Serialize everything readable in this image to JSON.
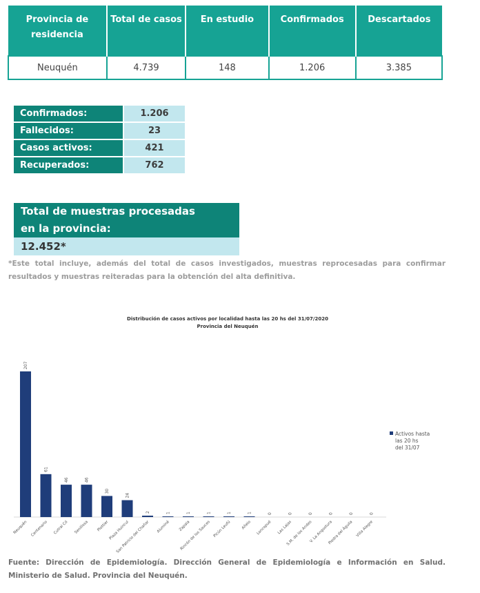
{
  "summary_table": {
    "headers": [
      "Provincia de residencia",
      "Total de casos",
      "En estudio",
      "Confirmados",
      "Descartados"
    ],
    "row": [
      "Neuquén",
      "4.739",
      "148",
      "1.206",
      "3.385"
    ]
  },
  "stats": [
    {
      "label": "Confirmados:",
      "value": "1.206"
    },
    {
      "label": "Fallecidos:",
      "value": "23"
    },
    {
      "label": "Casos activos:",
      "value": "421"
    },
    {
      "label": "Recuperados:",
      "value": "762"
    }
  ],
  "samples": {
    "title_line1": "Total de muestras procesadas",
    "title_line2": "en la provincia:",
    "value": "12.452*",
    "note": "*Este total incluye, además del total de casos investigados, muestras reprocesadas para confirmar resultados y muestras reiteradas para la obtención del alta definitiva."
  },
  "chart_data": {
    "type": "bar",
    "title": "Distribución de casos activos por localidad hasta las 20 hs del 31/07/2020",
    "subtitle": "Provincia del Neuquén",
    "categories": [
      "Neuquén",
      "Centenario",
      "Cutral Có",
      "Senillosa",
      "Plottier",
      "Plaza Huincul",
      "San Patricio del Chañar",
      "Aluminé",
      "Zapala",
      "Rincón de los Sauces",
      "Picún Leufú",
      "Añelo",
      "Loncopué",
      "Las Lajas",
      "S.M. de los Andes",
      "V. La Angostura",
      "Piedra del Águila",
      "Villa Alegre"
    ],
    "series": [
      {
        "name": "Activos hasta las 20 hs del 31/07",
        "values": [
          207,
          61,
          46,
          46,
          30,
          24,
          2,
          1,
          1,
          1,
          1,
          1,
          0,
          0,
          0,
          0,
          0,
          0
        ]
      }
    ],
    "ylim": [
      0,
      207
    ],
    "grid": false,
    "legend_position": "right",
    "bar_color": "#1f3d7a"
  },
  "source": "Fuente: Dirección de Epidemiología. Dirección General de Epidemiología e Información en Salud. Ministerio de Salud. Provincia del Neuquén."
}
